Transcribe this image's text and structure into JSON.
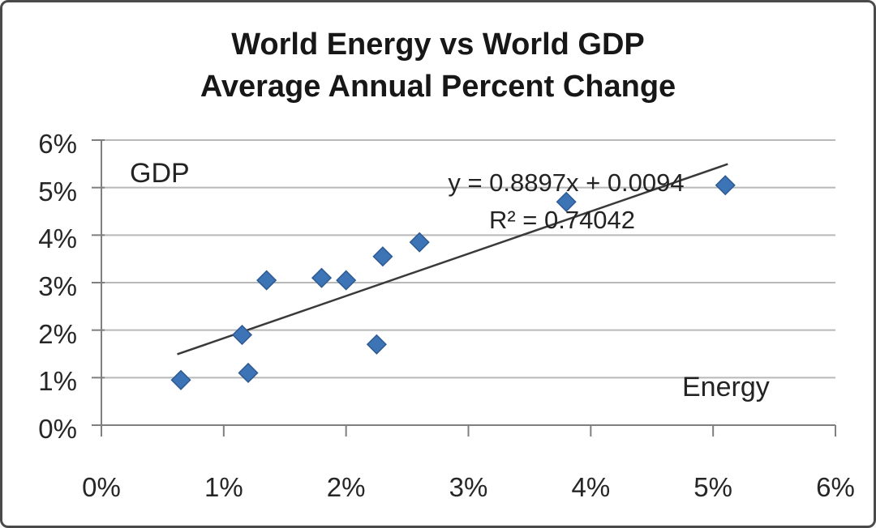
{
  "title": {
    "line1": "World Energy vs World GDP",
    "line2": "Average Annual Percent Change"
  },
  "labels": {
    "y_axis": "GDP",
    "x_axis": "Energy",
    "equation": "y = 0.8897x + 0.0094",
    "r_squared": "R² = 0.74042"
  },
  "colors": {
    "point_fill": "#3D74B5",
    "point_edge": "#2E5A94",
    "gridline": "#B8B8B8",
    "axis": "#7F7F7F",
    "trendline": "#3A3A3A",
    "text": "#232323"
  },
  "chart_data": {
    "type": "scatter",
    "title": "World Energy vs World GDP Average Annual Percent Change",
    "xlabel": "Energy",
    "ylabel": "GDP",
    "xlim": [
      0,
      6
    ],
    "ylim": [
      0,
      6
    ],
    "x_ticks": [
      "0%",
      "1%",
      "2%",
      "3%",
      "4%",
      "5%",
      "6%"
    ],
    "y_ticks": [
      "6%",
      "5%",
      "4%",
      "3%",
      "2%",
      "1%",
      "0%"
    ],
    "grid": "horizontal-only",
    "legend": "none",
    "points": [
      [
        0.65,
        0.95
      ],
      [
        1.15,
        1.9
      ],
      [
        1.2,
        1.1
      ],
      [
        1.35,
        3.05
      ],
      [
        1.8,
        3.1
      ],
      [
        2.0,
        3.05
      ],
      [
        2.25,
        1.7
      ],
      [
        2.3,
        3.55
      ],
      [
        2.6,
        3.85
      ],
      [
        3.8,
        4.7
      ],
      [
        5.1,
        5.05
      ]
    ],
    "trendline": {
      "slope": 0.8897,
      "intercept_pct": 0.94,
      "x_start": 0.62,
      "x_end": 5.12,
      "equation": "y = 0.8897x + 0.0094",
      "r_squared": 0.74042
    }
  }
}
